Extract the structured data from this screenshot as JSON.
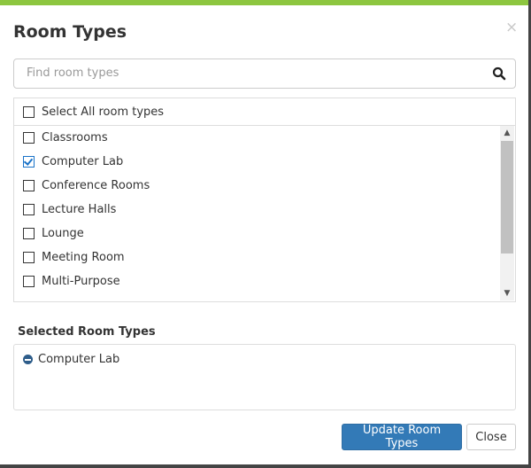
{
  "modal": {
    "title": "Room Types",
    "close_symbol": "×"
  },
  "search": {
    "placeholder": "Find room types",
    "value": ""
  },
  "list": {
    "select_all_label": "Select All room types",
    "items": [
      {
        "label": "Classrooms",
        "checked": false
      },
      {
        "label": "Computer Lab",
        "checked": true
      },
      {
        "label": "Conference Rooms",
        "checked": false
      },
      {
        "label": "Lecture Halls",
        "checked": false
      },
      {
        "label": "Lounge",
        "checked": false
      },
      {
        "label": "Meeting Room",
        "checked": false
      },
      {
        "label": "Multi-Purpose",
        "checked": false
      }
    ]
  },
  "selected": {
    "heading": "Selected Room Types",
    "items": [
      "Computer Lab"
    ]
  },
  "footer": {
    "update_label": "Update Room Types",
    "close_label": "Close"
  },
  "colors": {
    "accent_bar": "#8dc63f",
    "primary": "#337ab7"
  }
}
